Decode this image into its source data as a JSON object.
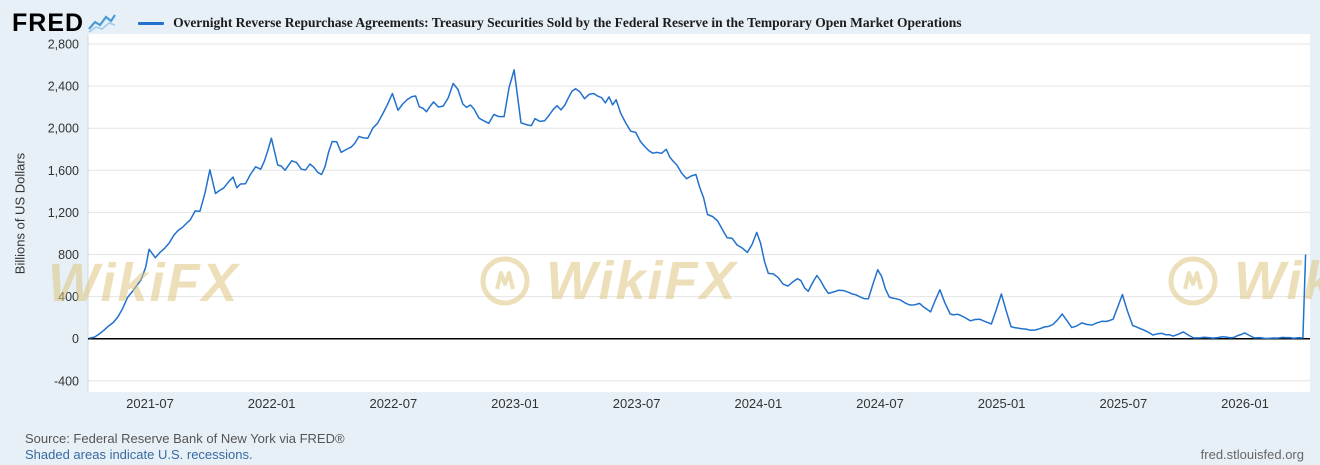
{
  "header": {
    "brand": "FRED"
  },
  "watermark": {
    "text": "WikiFX"
  },
  "footer": {
    "source": "Source: Federal Reserve Bank of New York via FRED®",
    "recession_note": "Shaded areas indicate U.S. recessions.",
    "site": "fred.stlouisfed.org"
  },
  "chart_data": {
    "type": "line",
    "title": "Overnight Reverse Repurchase Agreements: Treasury Securities Sold by the Federal Reserve in the Temporary Open Market Operations",
    "xlabel": "",
    "ylabel": "Billions of US Dollars",
    "ylim": [
      -400,
      2800
    ],
    "xlim": [
      "2021-04-01",
      "2026-04-08"
    ],
    "grid": "horizontal",
    "zero_line": true,
    "legend_position": "top",
    "y_ticks": [
      2800,
      2400,
      2000,
      1600,
      1200,
      800,
      400,
      0,
      -400
    ],
    "x_ticks": [
      "2021-07",
      "2022-01",
      "2022-07",
      "2023-01",
      "2023-07",
      "2024-01",
      "2024-07",
      "2025-01",
      "2025-07",
      "2026-01"
    ],
    "series": [
      {
        "name": "Overnight Reverse Repurchase Agreements: Treasury Securities Sold by the Federal Reserve in the Temporary Open Market Operations",
        "color": "#2171cd",
        "units": "Billions of US Dollars",
        "points": [
          [
            "2021-04-01",
            5
          ],
          [
            "2021-04-09",
            15
          ],
          [
            "2021-04-16",
            45
          ],
          [
            "2021-04-23",
            80
          ],
          [
            "2021-04-30",
            120
          ],
          [
            "2021-05-07",
            155
          ],
          [
            "2021-05-14",
            210
          ],
          [
            "2021-05-21",
            290
          ],
          [
            "2021-05-28",
            390
          ],
          [
            "2021-06-04",
            440
          ],
          [
            "2021-06-11",
            500
          ],
          [
            "2021-06-18",
            560
          ],
          [
            "2021-06-25",
            680
          ],
          [
            "2021-06-30",
            850
          ],
          [
            "2021-07-09",
            770
          ],
          [
            "2021-07-16",
            820
          ],
          [
            "2021-07-23",
            860
          ],
          [
            "2021-07-30",
            910
          ],
          [
            "2021-08-13",
            1030
          ],
          [
            "2021-08-31",
            1130
          ],
          [
            "2021-09-15",
            1210
          ],
          [
            "2021-09-30",
            1605
          ],
          [
            "2021-10-08",
            1380
          ],
          [
            "2021-10-20",
            1430
          ],
          [
            "2021-10-29",
            1500
          ],
          [
            "2021-11-15",
            1470
          ],
          [
            "2021-11-30",
            1560
          ],
          [
            "2021-12-15",
            1610
          ],
          [
            "2021-12-31",
            1905
          ],
          [
            "2022-01-10",
            1650
          ],
          [
            "2022-01-21",
            1600
          ],
          [
            "2022-01-31",
            1690
          ],
          [
            "2022-02-15",
            1610
          ],
          [
            "2022-02-28",
            1660
          ],
          [
            "2022-03-15",
            1560
          ],
          [
            "2022-03-31",
            1874
          ],
          [
            "2022-04-14",
            1770
          ],
          [
            "2022-04-29",
            1820
          ],
          [
            "2022-05-16",
            1910
          ],
          [
            "2022-05-31",
            2000
          ],
          [
            "2022-06-15",
            2130
          ],
          [
            "2022-06-30",
            2330
          ],
          [
            "2022-07-08",
            2170
          ],
          [
            "2022-07-15",
            2230
          ],
          [
            "2022-07-29",
            2300
          ],
          [
            "2022-08-15",
            2190
          ],
          [
            "2022-08-31",
            2250
          ],
          [
            "2022-09-15",
            2210
          ],
          [
            "2022-09-30",
            2425
          ],
          [
            "2022-10-14",
            2230
          ],
          [
            "2022-10-31",
            2180
          ],
          [
            "2022-11-15",
            2070
          ],
          [
            "2022-11-30",
            2130
          ],
          [
            "2022-12-15",
            2110
          ],
          [
            "2022-12-30",
            2554
          ],
          [
            "2023-01-10",
            2050
          ],
          [
            "2023-01-20",
            2030
          ],
          [
            "2023-01-31",
            2090
          ],
          [
            "2023-02-15",
            2070
          ],
          [
            "2023-02-28",
            2180
          ],
          [
            "2023-03-15",
            2220
          ],
          [
            "2023-03-31",
            2375
          ],
          [
            "2023-04-14",
            2280
          ],
          [
            "2023-04-28",
            2330
          ],
          [
            "2023-05-15",
            2240
          ],
          [
            "2023-05-31",
            2270
          ],
          [
            "2023-06-15",
            2050
          ],
          [
            "2023-06-30",
            1960
          ],
          [
            "2023-07-14",
            1820
          ],
          [
            "2023-07-31",
            1770
          ],
          [
            "2023-08-15",
            1800
          ],
          [
            "2023-08-31",
            1650
          ],
          [
            "2023-09-15",
            1520
          ],
          [
            "2023-09-29",
            1560
          ],
          [
            "2023-10-16",
            1180
          ],
          [
            "2023-10-31",
            1120
          ],
          [
            "2023-11-15",
            960
          ],
          [
            "2023-11-30",
            890
          ],
          [
            "2023-12-15",
            820
          ],
          [
            "2023-12-29",
            1010
          ],
          [
            "2024-01-16",
            620
          ],
          [
            "2024-01-31",
            580
          ],
          [
            "2024-02-15",
            500
          ],
          [
            "2024-02-29",
            570
          ],
          [
            "2024-03-15",
            450
          ],
          [
            "2024-03-28",
            600
          ],
          [
            "2024-04-15",
            430
          ],
          [
            "2024-04-30",
            460
          ],
          [
            "2024-05-15",
            440
          ],
          [
            "2024-05-31",
            400
          ],
          [
            "2024-06-14",
            380
          ],
          [
            "2024-06-28",
            655
          ],
          [
            "2024-07-15",
            395
          ],
          [
            "2024-07-31",
            370
          ],
          [
            "2024-08-15",
            320
          ],
          [
            "2024-08-30",
            335
          ],
          [
            "2024-09-16",
            255
          ],
          [
            "2024-09-30",
            465
          ],
          [
            "2024-10-15",
            235
          ],
          [
            "2024-10-31",
            220
          ],
          [
            "2024-11-15",
            170
          ],
          [
            "2024-11-29",
            185
          ],
          [
            "2024-12-16",
            140
          ],
          [
            "2024-12-31",
            425
          ],
          [
            "2025-01-15",
            115
          ],
          [
            "2025-01-31",
            95
          ],
          [
            "2025-02-14",
            80
          ],
          [
            "2025-02-28",
            95
          ],
          [
            "2025-03-17",
            135
          ],
          [
            "2025-03-31",
            235
          ],
          [
            "2025-04-15",
            105
          ],
          [
            "2025-04-30",
            150
          ],
          [
            "2025-05-15",
            130
          ],
          [
            "2025-05-30",
            165
          ],
          [
            "2025-06-16",
            185
          ],
          [
            "2025-06-30",
            420
          ],
          [
            "2025-07-15",
            125
          ],
          [
            "2025-07-31",
            85
          ],
          [
            "2025-08-15",
            35
          ],
          [
            "2025-08-29",
            50
          ],
          [
            "2025-09-15",
            25
          ],
          [
            "2025-09-30",
            65
          ],
          [
            "2025-10-15",
            8
          ],
          [
            "2025-10-31",
            14
          ],
          [
            "2025-11-14",
            6
          ],
          [
            "2025-11-28",
            18
          ],
          [
            "2025-12-15",
            12
          ],
          [
            "2025-12-31",
            55
          ],
          [
            "2026-01-15",
            8
          ],
          [
            "2026-01-30",
            5
          ],
          [
            "2026-02-13",
            7
          ],
          [
            "2026-02-27",
            12
          ],
          [
            "2026-03-13",
            5
          ],
          [
            "2026-03-27",
            8
          ],
          [
            "2026-03-31",
            800
          ]
        ]
      }
    ]
  }
}
